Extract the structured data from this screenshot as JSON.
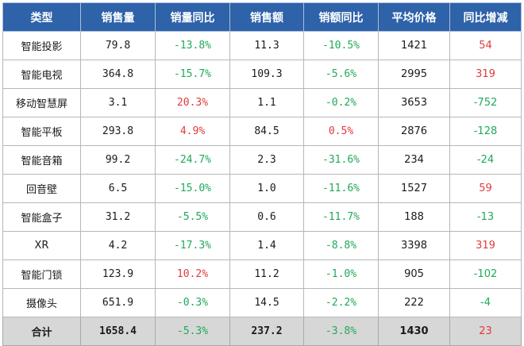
{
  "headers": [
    "类型",
    "销售量",
    "销量同比",
    "销售额",
    "销额同比",
    "平均价格",
    "同比增减"
  ],
  "rows": [
    {
      "type": "智能投影",
      "volume": "79.8",
      "volume_yoy": "-13.8%",
      "sales": "11.3",
      "sales_yoy": "-10.5%",
      "avg_price": "1421",
      "price_change": "54"
    },
    {
      "type": "智能电视",
      "volume": "364.8",
      "volume_yoy": "-15.7%",
      "sales": "109.3",
      "sales_yoy": "-5.6%",
      "avg_price": "2995",
      "price_change": "319"
    },
    {
      "type": "移动智慧屏",
      "volume": "3.1",
      "volume_yoy": "20.3%",
      "sales": "1.1",
      "sales_yoy": "-0.2%",
      "avg_price": "3653",
      "price_change": "-752"
    },
    {
      "type": "智能平板",
      "volume": "293.8",
      "volume_yoy": "4.9%",
      "sales": "84.5",
      "sales_yoy": "0.5%",
      "avg_price": "2876",
      "price_change": "-128"
    },
    {
      "type": "智能音箱",
      "volume": "99.2",
      "volume_yoy": "-24.7%",
      "sales": "2.3",
      "sales_yoy": "-31.6%",
      "avg_price": "234",
      "price_change": "-24"
    },
    {
      "type": "回音壁",
      "volume": "6.5",
      "volume_yoy": "-15.0%",
      "sales": "1.0",
      "sales_yoy": "-11.6%",
      "avg_price": "1527",
      "price_change": "59"
    },
    {
      "type": "智能盒子",
      "volume": "31.2",
      "volume_yoy": "-5.5%",
      "sales": "0.6",
      "sales_yoy": "-11.7%",
      "avg_price": "188",
      "price_change": "-13"
    },
    {
      "type": "XR",
      "volume": "4.2",
      "volume_yoy": "-17.3%",
      "sales": "1.4",
      "sales_yoy": "-8.8%",
      "avg_price": "3398",
      "price_change": "319"
    },
    {
      "type": "智能门锁",
      "volume": "123.9",
      "volume_yoy": "10.2%",
      "sales": "11.2",
      "sales_yoy": "-1.0%",
      "avg_price": "905",
      "price_change": "-102"
    },
    {
      "type": "摄像头",
      "volume": "651.9",
      "volume_yoy": "-0.3%",
      "sales": "14.5",
      "sales_yoy": "-2.2%",
      "avg_price": "222",
      "price_change": "-4"
    }
  ],
  "total": {
    "type": "合计",
    "volume": "1658.4",
    "volume_yoy": "-5.3%",
    "sales": "237.2",
    "sales_yoy": "-3.8%",
    "avg_price": "1430",
    "price_change": "23"
  },
  "colors": {
    "header_bg": "#2e62a9",
    "positive": "#e23a3a",
    "negative": "#1fa95a",
    "total_bg": "#d7d7d7"
  }
}
